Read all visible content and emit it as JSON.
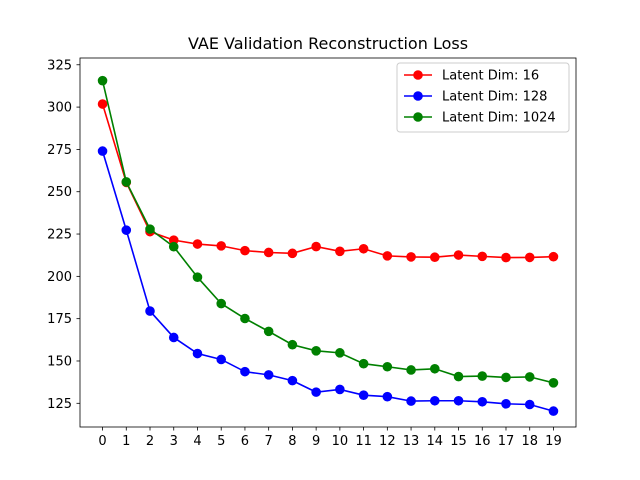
{
  "chart_data": {
    "type": "line",
    "title": "VAE Validation Reconstruction Loss",
    "xlabel": "",
    "ylabel": "",
    "x": [
      0,
      1,
      2,
      3,
      4,
      5,
      6,
      7,
      8,
      9,
      10,
      11,
      12,
      13,
      14,
      15,
      16,
      17,
      18,
      19
    ],
    "xticks": [
      "0",
      "1",
      "2",
      "3",
      "4",
      "5",
      "6",
      "7",
      "8",
      "9",
      "10",
      "11",
      "12",
      "13",
      "14",
      "15",
      "16",
      "17",
      "18",
      "19"
    ],
    "yticks": [
      "125",
      "150",
      "175",
      "200",
      "225",
      "250",
      "275",
      "300",
      "325"
    ],
    "ylim": [
      111,
      329
    ],
    "xlim": [
      -0.95,
      19.95
    ],
    "grid": false,
    "legend_position": "upper right",
    "series": [
      {
        "name": "Latent Dim: 16",
        "color": "#ff0000",
        "values": [
          301.8,
          255.5,
          226.4,
          221.4,
          219.1,
          218.0,
          215.2,
          214.1,
          213.6,
          217.6,
          214.8,
          216.3,
          212.1,
          211.5,
          211.3,
          212.6,
          211.8,
          211.1,
          211.2,
          211.6
        ]
      },
      {
        "name": "Latent Dim: 128",
        "color": "#0000ff",
        "values": [
          274.0,
          227.3,
          179.5,
          163.9,
          154.4,
          150.9,
          143.7,
          141.8,
          138.4,
          131.6,
          133.2,
          129.8,
          128.9,
          126.3,
          126.5,
          126.5,
          125.9,
          124.7,
          124.3,
          120.4
        ]
      },
      {
        "name": "Latent Dim: 1024",
        "color": "#008000",
        "values": [
          315.6,
          255.8,
          227.9,
          217.5,
          199.5,
          183.9,
          175.1,
          167.5,
          159.6,
          156.0,
          154.8,
          148.4,
          146.6,
          144.7,
          145.4,
          140.8,
          141.1,
          140.3,
          140.6,
          137.1
        ]
      }
    ]
  }
}
